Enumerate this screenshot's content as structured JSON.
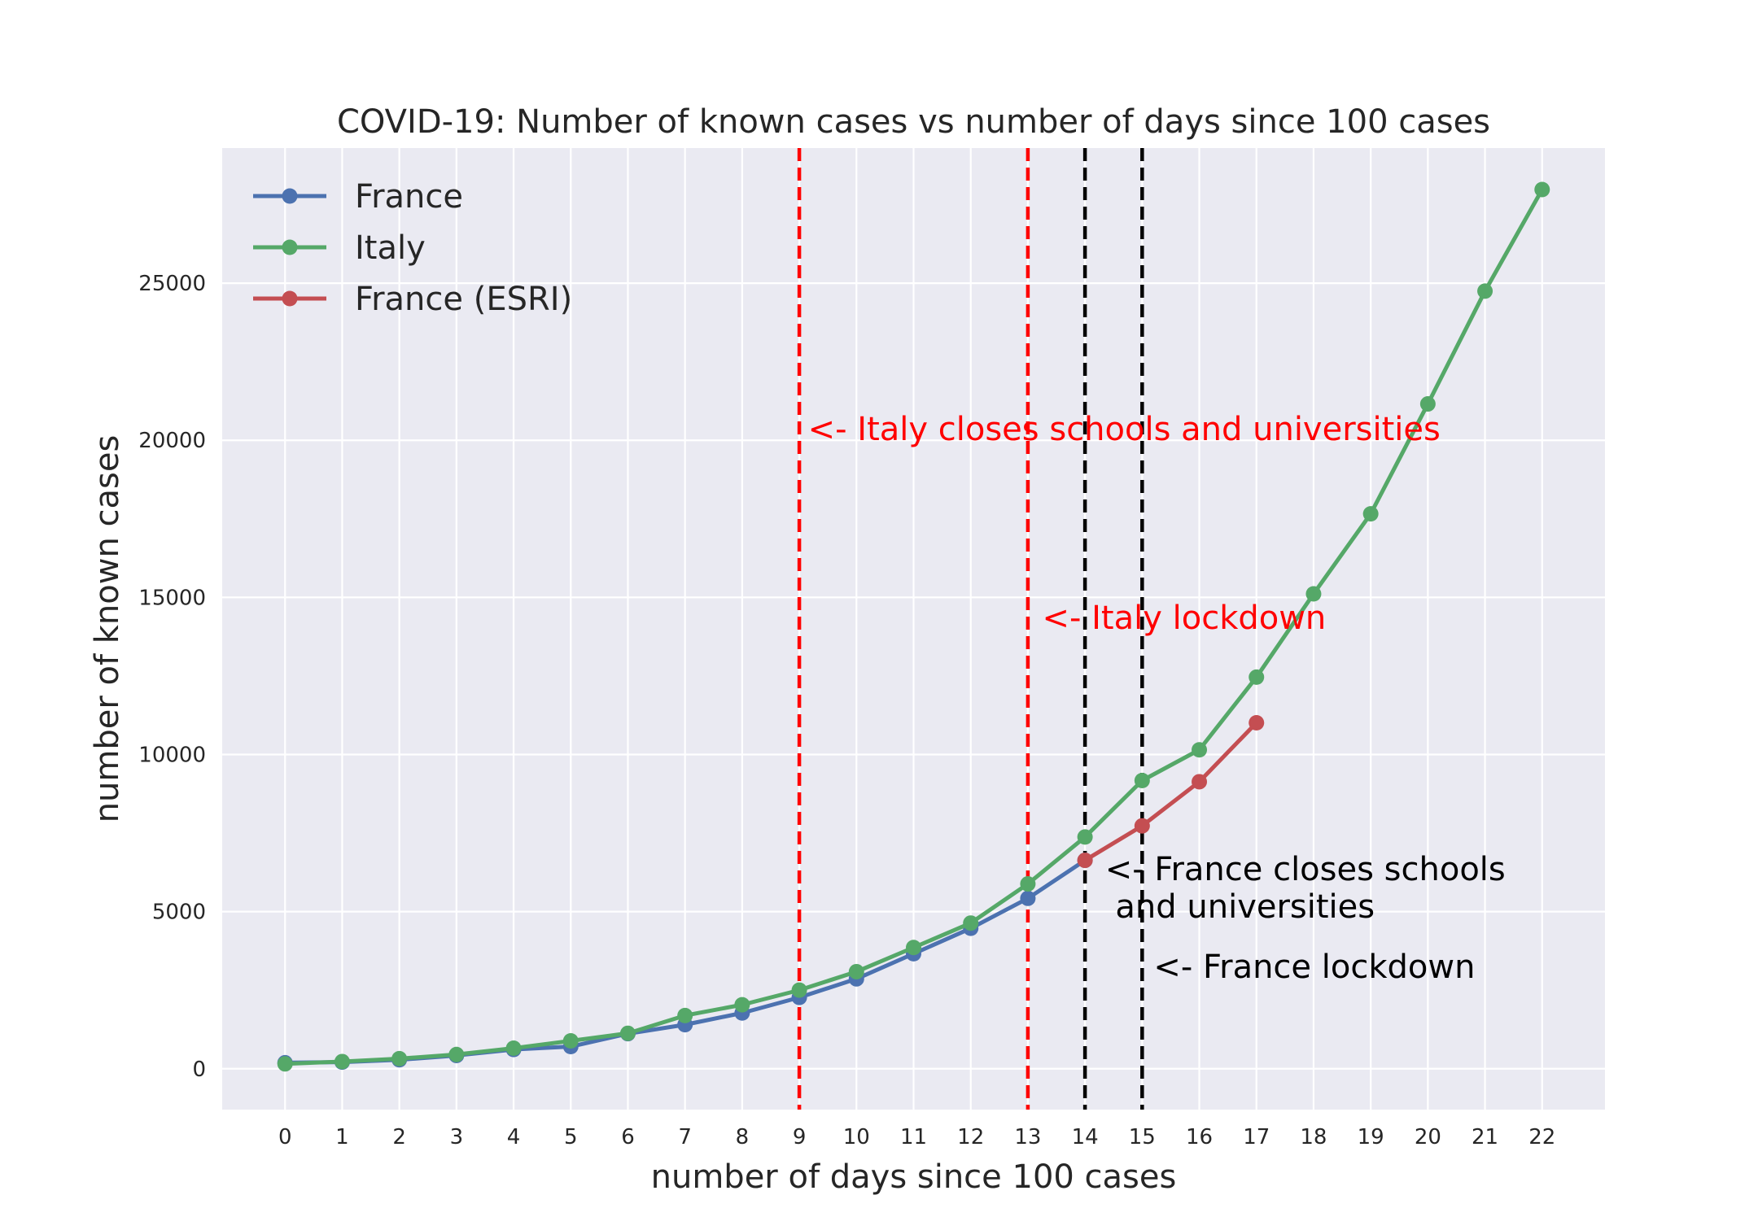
{
  "chart_data": {
    "type": "line",
    "title": "COVID-19: Number of known cases vs number of days since 100 cases",
    "xlabel": "number of days since 100 cases",
    "ylabel": "number of known cases",
    "xlim": [
      -1.1,
      23.1
    ],
    "ylim": [
      -1300,
      29300
    ],
    "xticks": [
      0,
      1,
      2,
      3,
      4,
      5,
      6,
      7,
      8,
      9,
      10,
      11,
      12,
      13,
      14,
      15,
      16,
      17,
      18,
      19,
      20,
      21,
      22
    ],
    "yticks": [
      0,
      5000,
      10000,
      15000,
      20000,
      25000
    ],
    "grid": true,
    "legend_position": "top-left",
    "series": [
      {
        "name": "France",
        "color": "#4c72b0",
        "x": [
          0,
          1,
          2,
          3,
          4,
          5,
          6,
          7,
          8,
          9,
          10,
          11,
          12,
          13,
          14
        ],
        "y": [
          191,
          212,
          285,
          423,
          613,
          706,
          1116,
          1402,
          1774,
          2269,
          2860,
          3661,
          4469,
          5423,
          6633
        ]
      },
      {
        "name": "Italy",
        "color": "#55a868",
        "x": [
          0,
          1,
          2,
          3,
          4,
          5,
          6,
          7,
          8,
          9,
          10,
          11,
          12,
          13,
          14,
          15,
          16,
          17,
          18,
          19,
          20,
          21,
          22
        ],
        "y": [
          155,
          229,
          322,
          453,
          655,
          888,
          1128,
          1694,
          2036,
          2502,
          3089,
          3858,
          4636,
          5883,
          7375,
          9172,
          10149,
          12462,
          15113,
          17660,
          21157,
          24747,
          27980
        ]
      },
      {
        "name": "France (ESRI)",
        "color": "#c44e52",
        "x": [
          14,
          15,
          16,
          17
        ],
        "y": [
          6633,
          7730,
          9134,
          11010
        ]
      }
    ],
    "vlines": [
      {
        "x": 9,
        "color": "#ff0000"
      },
      {
        "x": 13,
        "color": "#ff0000"
      },
      {
        "x": 14,
        "color": "#000000"
      },
      {
        "x": 15,
        "color": "#000000"
      }
    ],
    "annotations": [
      {
        "lines": [
          "<-  Italy closes schools and universities"
        ],
        "x": 9.15,
        "y": 20000,
        "color": "#ff0000"
      },
      {
        "lines": [
          "<-  Italy lockdown"
        ],
        "x": 13.25,
        "y": 14000,
        "color": "#ff0000"
      },
      {
        "lines": [
          "<-  France closes schools",
          "    and universities"
        ],
        "x": 14.35,
        "y": 6000,
        "color": "#000000"
      },
      {
        "lines": [
          "<-  France lockdown"
        ],
        "x": 15.2,
        "y": 2900,
        "color": "#000000"
      }
    ]
  }
}
